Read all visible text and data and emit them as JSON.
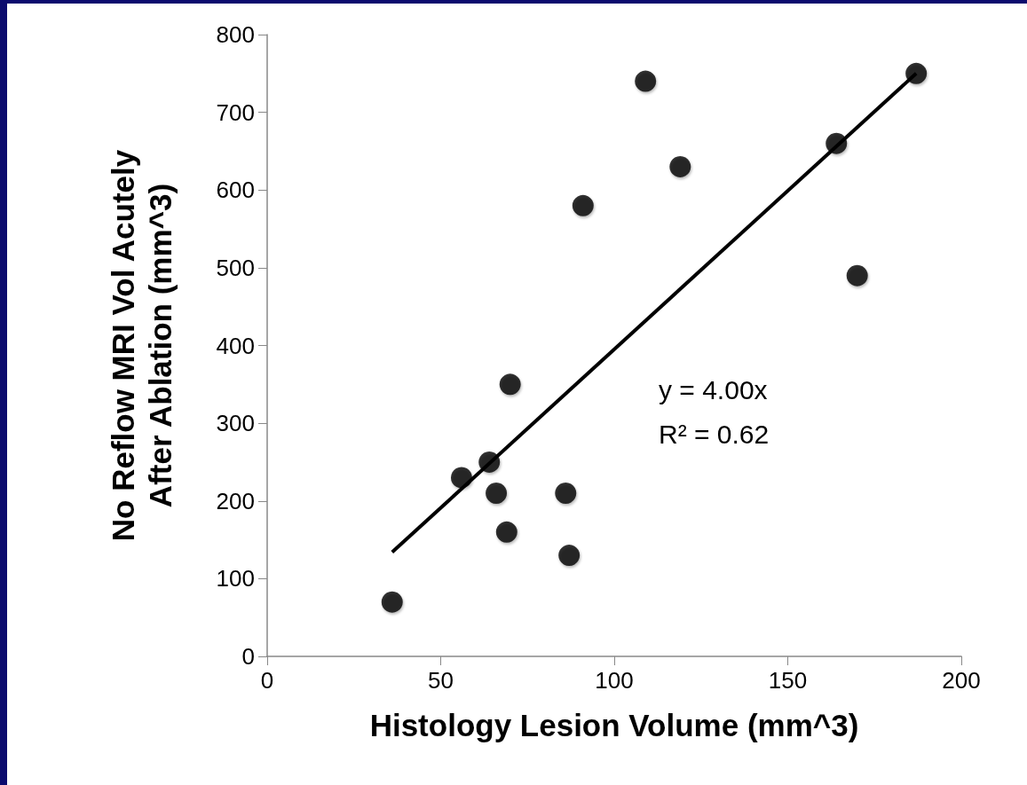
{
  "chart_data": {
    "type": "scatter",
    "xlabel": "Histology Lesion Volume (mm^3)",
    "ylabel": "No Reflow MRI Vol Acutely\nAfter Ablation (mm^3)",
    "x": [
      36,
      56,
      64,
      66,
      70,
      69,
      86,
      87,
      91,
      109,
      119,
      164,
      170,
      187
    ],
    "series": [
      {
        "color": "#000000",
        "values": [
          70,
          230,
          250,
          210,
          350,
          160,
          210,
          130,
          580,
          740,
          630,
          660,
          490,
          750
        ]
      },
      {
        "type": "line",
        "color": "#000000",
        "x": [
          36,
          187
        ],
        "values": [
          134,
          750
        ],
        "marker": "none",
        "line_style": "solid"
      }
    ],
    "marker": "circle",
    "annotations": [
      "y = 4.00x",
      "R² = 0.62"
    ],
    "xlim": [
      0,
      200
    ],
    "xticks": [
      0,
      50,
      100,
      150,
      200
    ],
    "ylim": [
      0,
      800
    ],
    "yticks": [
      0,
      100,
      200,
      300,
      400,
      500,
      600,
      700,
      800
    ],
    "grid": false
  }
}
